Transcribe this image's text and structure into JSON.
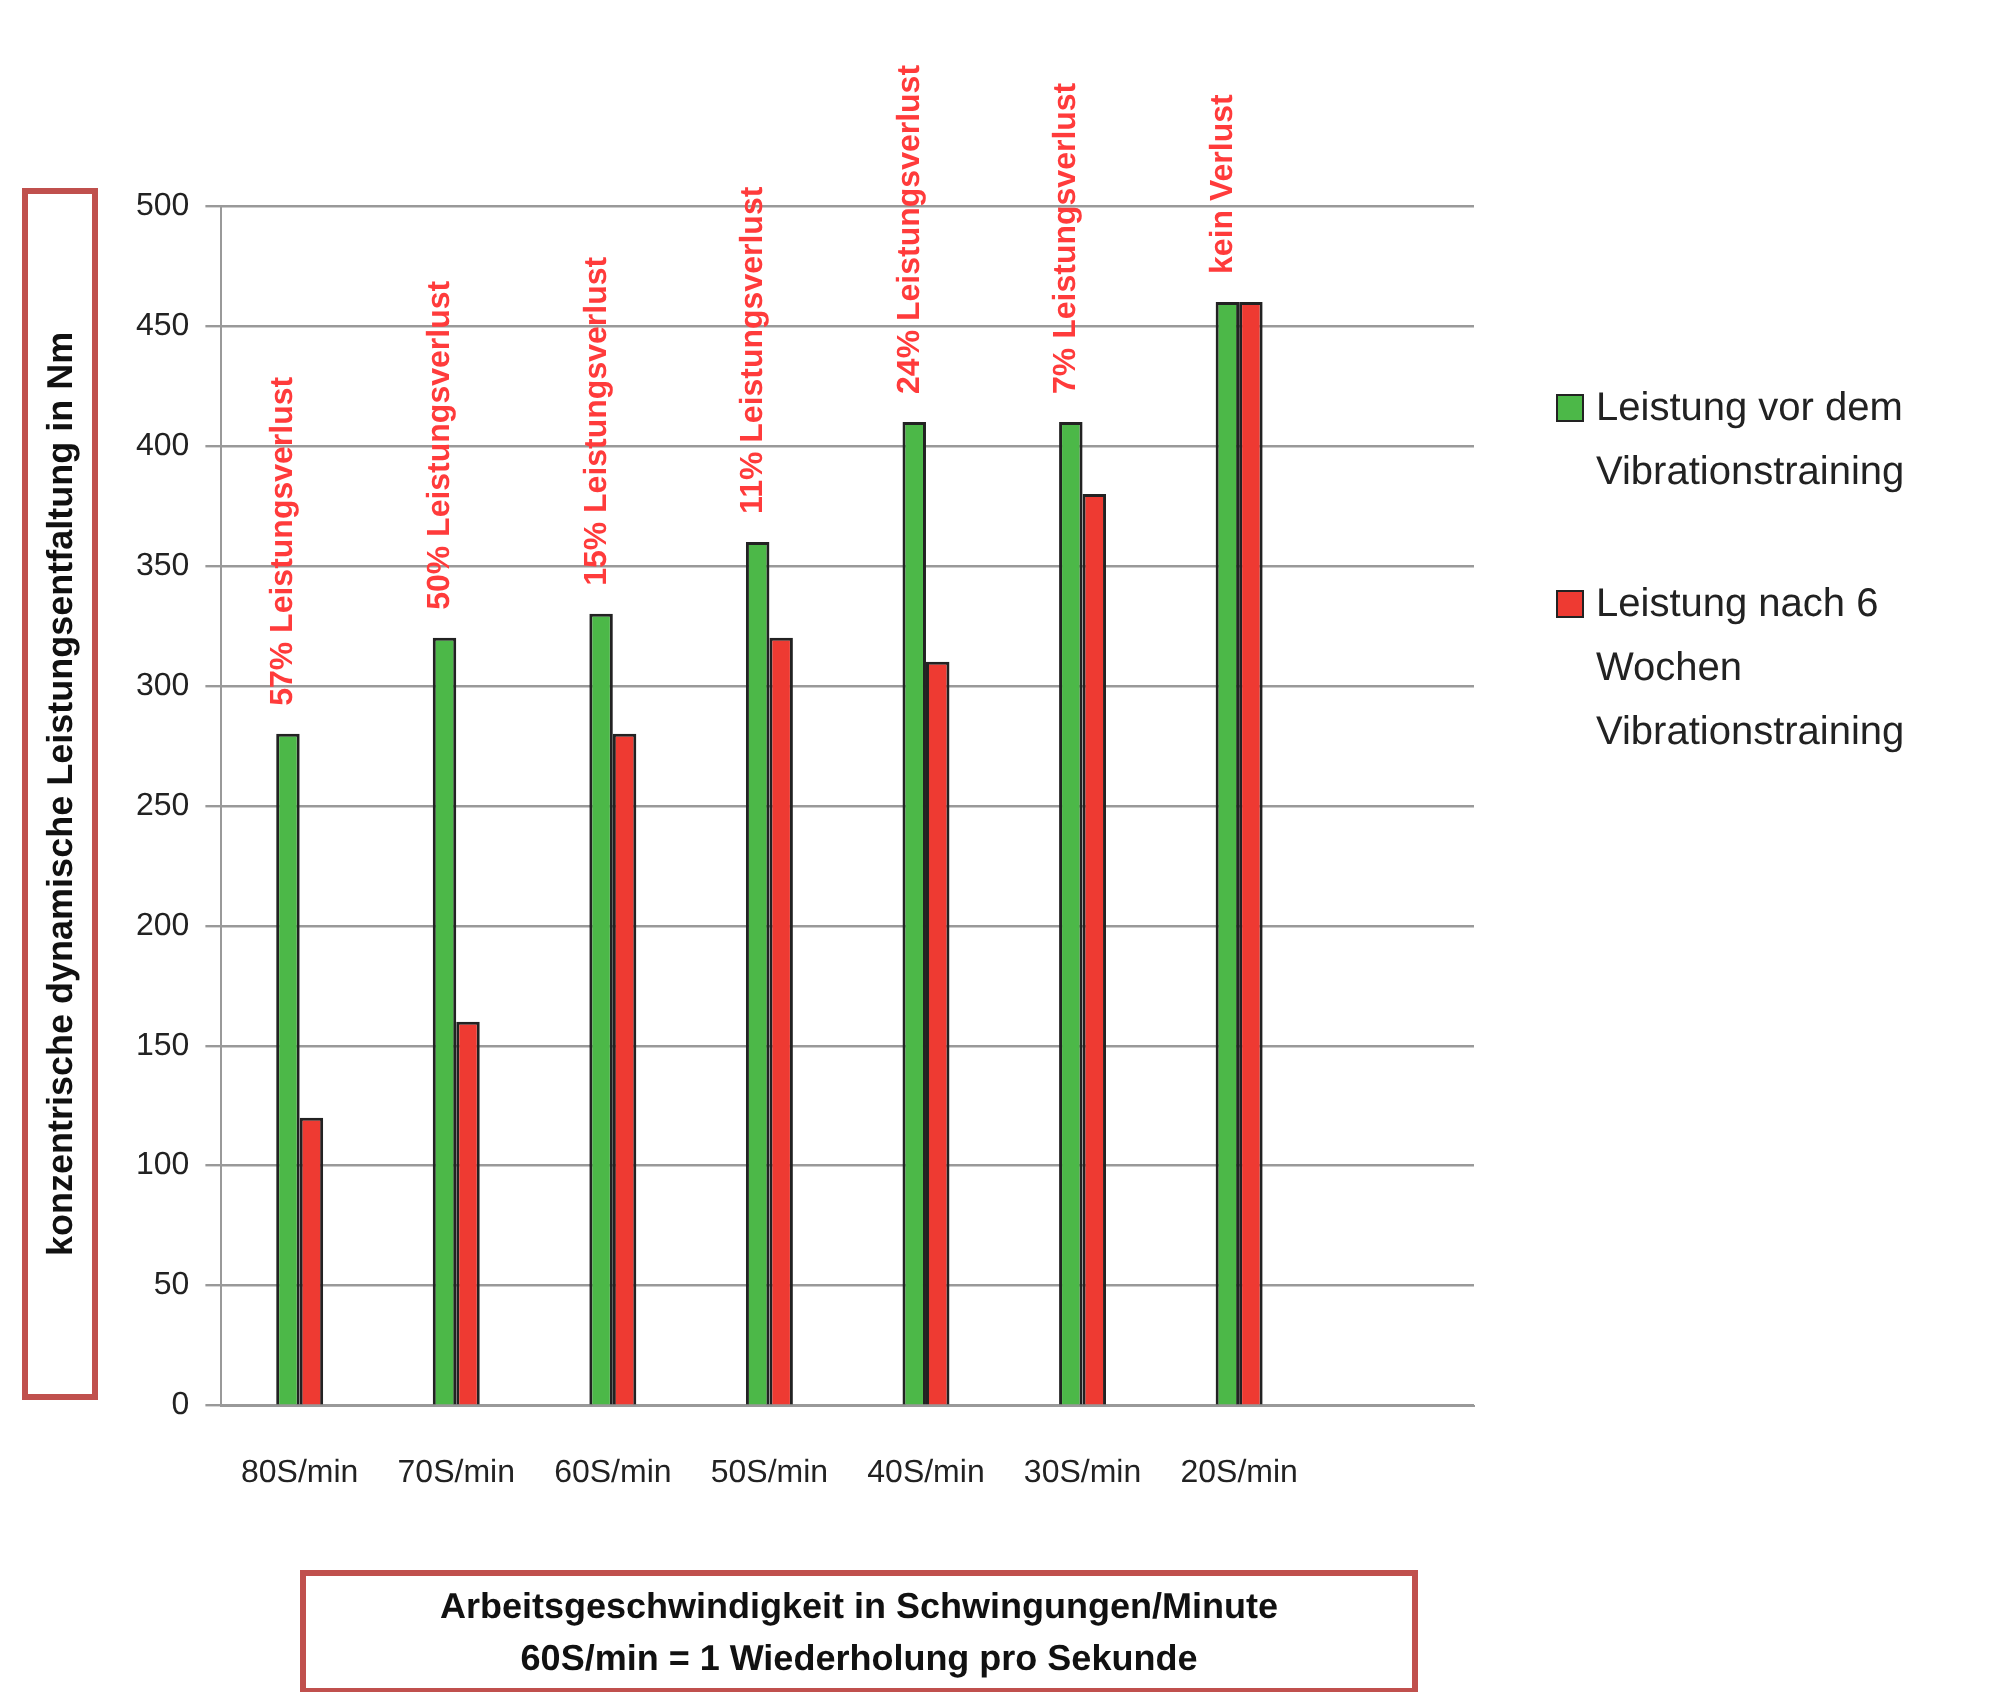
{
  "chart_data": {
    "type": "bar",
    "xlabel": "Arbeitsgeschwindigkeit in Schwingungen/Minute\n60S/min = 1 Wiederholung pro Sekunde",
    "ylabel": "konzentrische dynamische Leistungsentfaltung in Nm",
    "categories": [
      "80S/min",
      "70S/min",
      "60S/min",
      "50S/min",
      "40S/min",
      "30S/min",
      "20S/min",
      null
    ],
    "series": [
      {
        "name": "Leistung vor dem Vibrationstraining",
        "color": "#4cb848",
        "values": [
          280,
          320,
          330,
          360,
          410,
          410,
          460,
          null
        ]
      },
      {
        "name": "Leistung nach 6 Wochen Vibrationstraining",
        "color": "#ee3a32",
        "values": [
          120,
          160,
          280,
          320,
          310,
          380,
          460,
          null
        ]
      }
    ],
    "ylim": [
      0,
      500
    ],
    "yticks": [
      0,
      50,
      100,
      150,
      200,
      250,
      300,
      350,
      400,
      450,
      500
    ],
    "grid": "y",
    "legend": "right",
    "annotations": [
      "57% Leistungsverlust",
      "50% Leistungsverlust",
      "15% Leistungsverlust",
      "11% Leistungsverlust",
      "24% Leistungsverlust",
      "7% Leistungsverlust",
      "kein Verlust"
    ]
  }
}
